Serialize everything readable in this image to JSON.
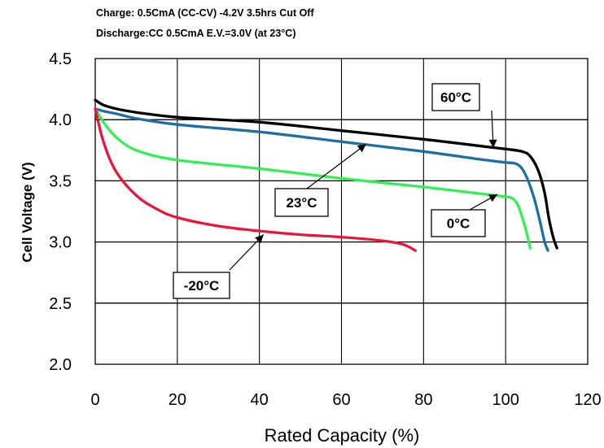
{
  "conditions": {
    "charge": "Charge: 0.5CmA (CC-CV) -4.2V 3.5hrs Cut Off",
    "discharge": "Discharge:CC 0.5CmA  E.V.=3.0V (at 23°C)"
  },
  "chart_data": {
    "type": "line",
    "xlabel": "Rated Capacity (%)",
    "ylabel": "Cell Voltage (V)",
    "xlim": [
      0,
      120
    ],
    "ylim": [
      2.0,
      4.5
    ],
    "xticks": [
      "0",
      "20",
      "40",
      "60",
      "80",
      "100",
      "120"
    ],
    "yticks": [
      "2.0",
      "2.5",
      "3.0",
      "3.5",
      "4.0",
      "4.5"
    ],
    "grid": "horizontal and vertical",
    "series": [
      {
        "name": "60°C",
        "color": "#000000",
        "points": [
          [
            0,
            4.16
          ],
          [
            2,
            4.12
          ],
          [
            5,
            4.09
          ],
          [
            10,
            4.06
          ],
          [
            20,
            4.02
          ],
          [
            40,
            3.98
          ],
          [
            60,
            3.91
          ],
          [
            80,
            3.84
          ],
          [
            95,
            3.78
          ],
          [
            100,
            3.76
          ],
          [
            104,
            3.74
          ],
          [
            106,
            3.7
          ],
          [
            108,
            3.58
          ],
          [
            109.5,
            3.4
          ],
          [
            110.5,
            3.2
          ],
          [
            111.5,
            3.05
          ],
          [
            112.5,
            2.95
          ]
        ]
      },
      {
        "name": "23°C",
        "color": "#1e6fa5",
        "points": [
          [
            0,
            4.09
          ],
          [
            2,
            4.07
          ],
          [
            5,
            4.05
          ],
          [
            10,
            4.01
          ],
          [
            20,
            3.96
          ],
          [
            40,
            3.9
          ],
          [
            60,
            3.82
          ],
          [
            80,
            3.74
          ],
          [
            95,
            3.67
          ],
          [
            100,
            3.65
          ],
          [
            102.5,
            3.64
          ],
          [
            104,
            3.6
          ],
          [
            105.5,
            3.5
          ],
          [
            107,
            3.35
          ],
          [
            108.5,
            3.15
          ],
          [
            109.5,
            3.0
          ],
          [
            110.3,
            2.93
          ]
        ]
      },
      {
        "name": "0°C",
        "color": "#33ee55",
        "points": [
          [
            0,
            4.09
          ],
          [
            2,
            3.98
          ],
          [
            5,
            3.86
          ],
          [
            10,
            3.75
          ],
          [
            20,
            3.67
          ],
          [
            40,
            3.6
          ],
          [
            60,
            3.52
          ],
          [
            80,
            3.45
          ],
          [
            95,
            3.39
          ],
          [
            100,
            3.37
          ],
          [
            101.5,
            3.36
          ],
          [
            103,
            3.3
          ],
          [
            104.5,
            3.15
          ],
          [
            105.3,
            3.05
          ],
          [
            106,
            2.95
          ]
        ]
      },
      {
        "name": "-20°C",
        "color": "#e8173a",
        "points": [
          [
            0,
            4.09
          ],
          [
            2,
            3.82
          ],
          [
            5,
            3.58
          ],
          [
            10,
            3.38
          ],
          [
            15,
            3.27
          ],
          [
            20,
            3.2
          ],
          [
            30,
            3.13
          ],
          [
            40,
            3.09
          ],
          [
            50,
            3.06
          ],
          [
            60,
            3.04
          ],
          [
            70,
            3.01
          ],
          [
            75,
            2.98
          ],
          [
            78,
            2.93
          ]
        ]
      }
    ],
    "annotations": [
      {
        "text": "60°C",
        "series": "60°C",
        "target": [
          97,
          3.77
        ]
      },
      {
        "text": "23°C",
        "series": "23°C",
        "target": [
          66,
          3.8
        ]
      },
      {
        "text": "0°C",
        "series": "0°C",
        "target": [
          98,
          3.39
        ]
      },
      {
        "text": "-20°C",
        "series": "-20°C",
        "target": [
          41,
          3.06
        ]
      }
    ]
  }
}
